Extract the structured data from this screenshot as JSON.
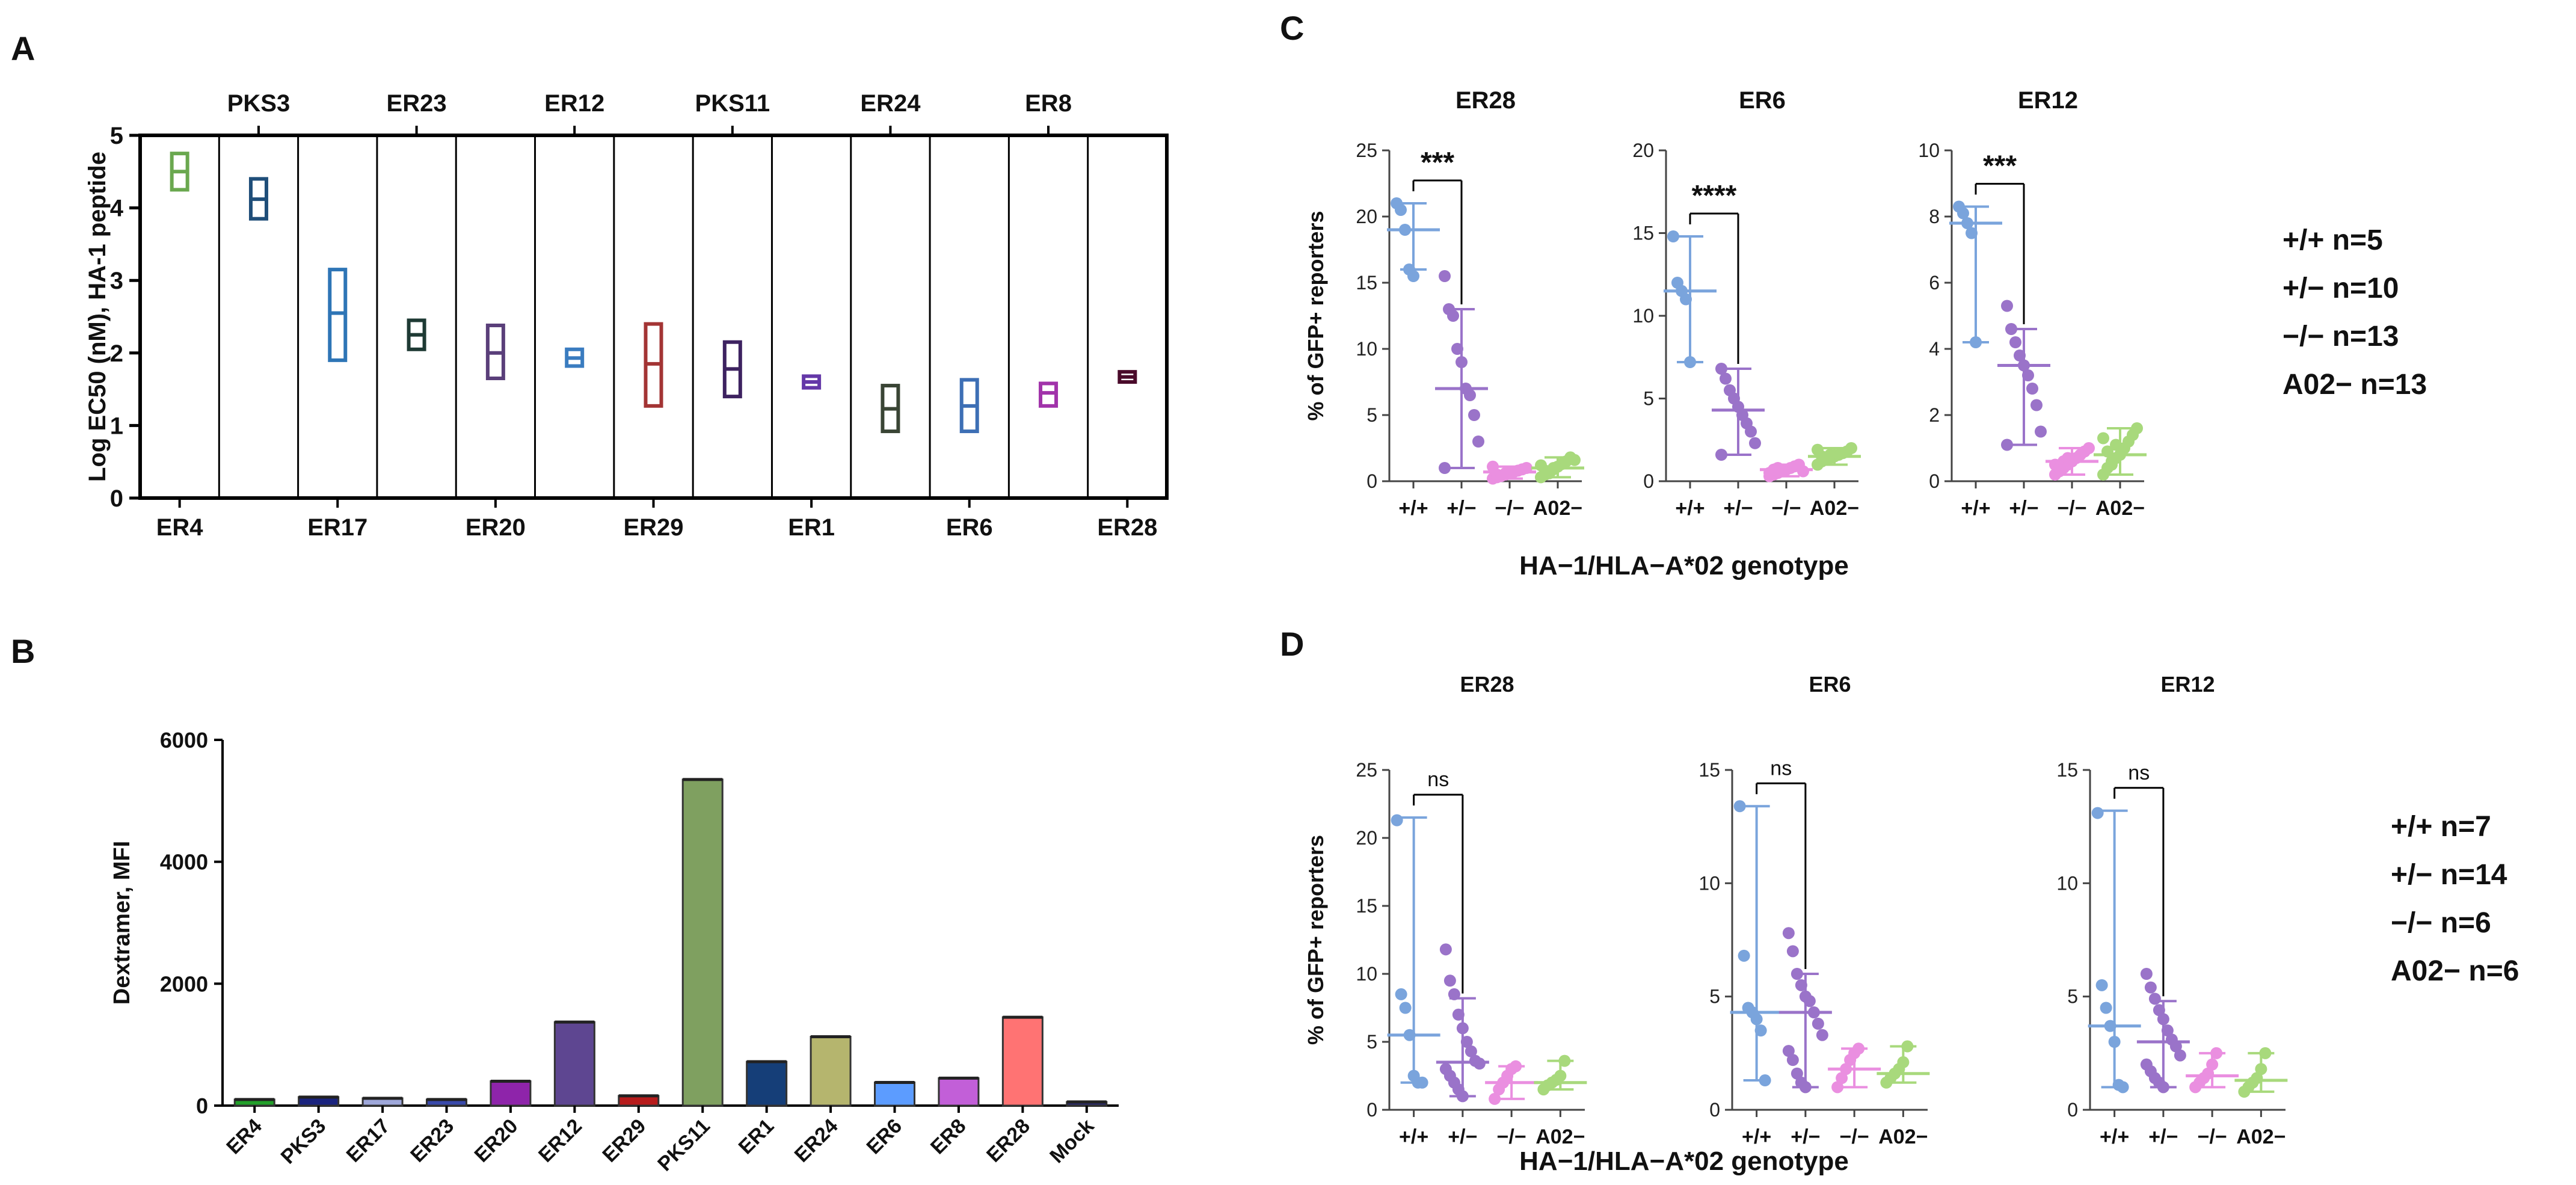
{
  "panel_labels": {
    "a": "A",
    "b": "B",
    "c": "C",
    "d": "D"
  },
  "chart_data": [
    {
      "id": "A",
      "type": "box",
      "ylabel": "Log EC50 (nM), HA-1 peptide",
      "ylim": [
        0,
        5
      ],
      "yticks": [
        0,
        1,
        2,
        3,
        4,
        5
      ],
      "categories": [
        "ER4",
        "PKS3",
        "ER17",
        "ER23",
        "ER20",
        "ER12",
        "ER29",
        "PKS11",
        "ER1",
        "ER24",
        "ER6",
        "ER8",
        "ER28"
      ],
      "label_rows": {
        "top": [
          "PKS3",
          "ER23",
          "ER12",
          "PKS11",
          "ER24",
          "ER8"
        ],
        "bottom": [
          "ER4",
          "ER17",
          "ER20",
          "ER29",
          "ER1",
          "ER6",
          "ER28"
        ]
      },
      "boxes": [
        {
          "name": "ER4",
          "low": 4.25,
          "mid": 4.5,
          "high": 4.75,
          "color": "#6aa84f"
        },
        {
          "name": "PKS3",
          "low": 3.85,
          "mid": 4.12,
          "high": 4.4,
          "color": "#1f4e79"
        },
        {
          "name": "ER17",
          "low": 1.9,
          "mid": 2.55,
          "high": 3.15,
          "color": "#2e75b6"
        },
        {
          "name": "ER23",
          "low": 2.05,
          "mid": 2.25,
          "high": 2.45,
          "color": "#1e3a34"
        },
        {
          "name": "ER20",
          "low": 1.65,
          "mid": 2.0,
          "high": 2.38,
          "color": "#5a3f7a"
        },
        {
          "name": "ER12",
          "low": 1.82,
          "mid": 1.93,
          "high": 2.05,
          "color": "#3a7cc0"
        },
        {
          "name": "ER29",
          "low": 1.27,
          "mid": 1.85,
          "high": 2.4,
          "color": "#a33434"
        },
        {
          "name": "PKS11",
          "low": 1.4,
          "mid": 1.78,
          "high": 2.15,
          "color": "#3d2260"
        },
        {
          "name": "ER1",
          "low": 1.52,
          "mid": 1.6,
          "high": 1.68,
          "color": "#6438a8"
        },
        {
          "name": "ER24",
          "low": 0.92,
          "mid": 1.23,
          "high": 1.55,
          "color": "#3a4535"
        },
        {
          "name": "ER6",
          "low": 0.92,
          "mid": 1.27,
          "high": 1.63,
          "color": "#3d6fb5"
        },
        {
          "name": "ER8",
          "low": 1.27,
          "mid": 1.45,
          "high": 1.58,
          "color": "#a133aa"
        },
        {
          "name": "ER28",
          "low": 1.6,
          "mid": 1.67,
          "high": 1.74,
          "color": "#4a0a2a"
        }
      ]
    },
    {
      "id": "B",
      "type": "bar",
      "ylabel": "Dextramer, MFI",
      "ylim": [
        0,
        6000
      ],
      "yticks": [
        0,
        2000,
        4000,
        6000
      ],
      "categories": [
        "ER4",
        "PKS3",
        "ER17",
        "ER23",
        "ER20",
        "ER12",
        "ER29",
        "PKS11",
        "ER1",
        "ER24",
        "ER6",
        "ER8",
        "ER28",
        "Mock"
      ],
      "values": [
        100,
        140,
        120,
        100,
        400,
        1370,
        160,
        5350,
        720,
        1130,
        380,
        450,
        1450,
        60
      ],
      "colors": [
        "#22a02a",
        "#1a237e",
        "#9fa8da",
        "#3949ab",
        "#8e24aa",
        "#5e4691",
        "#b71c1c",
        "#7fa060",
        "#153e78",
        "#b5b56e",
        "#5c9cff",
        "#c25fd8",
        "#ff7373",
        "#2b2b6b"
      ]
    },
    {
      "id": "C",
      "type": "scatter",
      "ylabel": "% of GFP+ reporters",
      "xlabel": "HA−1/HLA−A*02 genotype",
      "groups": [
        "+/+",
        "+/−",
        "−/−",
        "A02−"
      ],
      "group_colors": [
        "#7aa4dc",
        "#9a73c9",
        "#ea8fe0",
        "#a8d97c"
      ],
      "legend": [
        "+/+ n=5",
        "+/− n=10",
        "−/− n=13",
        "A02− n=13"
      ],
      "subplots": [
        {
          "title": "ER28",
          "ylim": [
            0,
            25
          ],
          "yticks": [
            0,
            5,
            10,
            15,
            20,
            25
          ],
          "significance": "***",
          "groups": [
            {
              "median": 19,
              "low": 16,
              "high": 21,
              "points": [
                21,
                20.5,
                19,
                16,
                15.5
              ]
            },
            {
              "median": 7,
              "low": 1,
              "high": 13,
              "points": [
                15.5,
                13,
                12.5,
                10,
                9,
                7,
                6.5,
                5,
                3,
                1
              ]
            },
            {
              "median": 0.7,
              "low": 0.2,
              "high": 1.1,
              "points": [
                0.2,
                0.3,
                0.4,
                0.5,
                0.6,
                0.7,
                0.8,
                0.9,
                1,
                1.1,
                0.5,
                0.4,
                0.6
              ]
            },
            {
              "median": 1,
              "low": 0.3,
              "high": 1.8,
              "points": [
                0.3,
                0.5,
                0.7,
                0.9,
                1.1,
                1.3,
                1.5,
                1.8,
                1.6,
                1.2,
                0.8,
                0.6,
                1
              ]
            }
          ]
        },
        {
          "title": "ER6",
          "ylim": [
            0,
            20
          ],
          "yticks": [
            0,
            5,
            10,
            15,
            20
          ],
          "significance": "****",
          "groups": [
            {
              "median": 11.5,
              "low": 7.2,
              "high": 14.8,
              "points": [
                14.8,
                12,
                11.5,
                11,
                7.2
              ]
            },
            {
              "median": 4.3,
              "low": 1.6,
              "high": 6.8,
              "points": [
                6.8,
                6.2,
                5.5,
                5,
                4.5,
                4,
                3.5,
                3,
                2.3,
                1.6
              ]
            },
            {
              "median": 0.7,
              "low": 0.3,
              "high": 1,
              "points": [
                0.3,
                0.4,
                0.5,
                0.6,
                0.7,
                0.8,
                0.9,
                1,
                0.6,
                0.5,
                0.7,
                0.8,
                0.6
              ]
            },
            {
              "median": 1.5,
              "low": 1,
              "high": 2,
              "points": [
                1,
                1.2,
                1.3,
                1.4,
                1.5,
                1.6,
                1.7,
                1.8,
                2,
                1.9,
                1.5,
                1.4,
                1.6
              ]
            }
          ]
        },
        {
          "title": "ER12",
          "ylim": [
            0,
            10
          ],
          "yticks": [
            0,
            2,
            4,
            6,
            8,
            10
          ],
          "significance": "***",
          "groups": [
            {
              "median": 7.8,
              "low": 4.2,
              "high": 8.3,
              "points": [
                8.3,
                8.1,
                7.8,
                7.5,
                4.2
              ]
            },
            {
              "median": 3.5,
              "low": 1.1,
              "high": 4.6,
              "points": [
                5.3,
                4.6,
                4.2,
                3.8,
                3.5,
                3.2,
                2.8,
                2.3,
                1.5,
                1.1
              ]
            },
            {
              "median": 0.6,
              "low": 0.2,
              "high": 1,
              "points": [
                0.2,
                0.3,
                0.4,
                0.5,
                0.6,
                0.7,
                0.8,
                0.9,
                1,
                0.5,
                0.4,
                0.6,
                0.7
              ]
            },
            {
              "median": 0.8,
              "low": 0.2,
              "high": 1.6,
              "points": [
                0.2,
                0.4,
                0.5,
                0.7,
                0.8,
                1,
                1.2,
                1.4,
                1.6,
                1.3,
                0.9,
                0.6,
                1.1
              ]
            }
          ]
        }
      ]
    },
    {
      "id": "D",
      "type": "scatter",
      "ylabel": "% of GFP+ reporters",
      "xlabel": "HA−1/HLA−A*02 genotype",
      "groups": [
        "+/+",
        "+/−",
        "−/−",
        "A02−"
      ],
      "group_colors": [
        "#7aa4dc",
        "#9a73c9",
        "#ea8fe0",
        "#a8d97c"
      ],
      "legend": [
        "+/+ n=7",
        "+/− n=14",
        "−/− n=6",
        "A02− n=6"
      ],
      "subplots": [
        {
          "title": "ER28",
          "ylim": [
            0,
            25
          ],
          "yticks": [
            0,
            5,
            10,
            15,
            20,
            25
          ],
          "significance": "ns",
          "groups": [
            {
              "median": 5.5,
              "low": 2,
              "high": 21.5,
              "points": [
                21.3,
                8.5,
                7.5,
                5.5,
                2.5,
                2,
                2
              ]
            },
            {
              "median": 3.5,
              "low": 1,
              "high": 8.2,
              "points": [
                11.8,
                9.5,
                8.5,
                7,
                6,
                5,
                4.3,
                3.6,
                3.4,
                3,
                2.5,
                2,
                1.5,
                1
              ]
            },
            {
              "median": 2,
              "low": 0.8,
              "high": 3.2,
              "points": [
                0.8,
                1.5,
                2,
                2.5,
                3,
                3.2
              ]
            },
            {
              "median": 2,
              "low": 1.5,
              "high": 3.6,
              "points": [
                1.5,
                1.8,
                2,
                2.2,
                2.5,
                3.6
              ]
            }
          ]
        },
        {
          "title": "ER6",
          "ylim": [
            0,
            15
          ],
          "yticks": [
            0,
            5,
            10,
            15
          ],
          "significance": "ns",
          "groups": [
            {
              "median": 4.3,
              "low": 1.3,
              "high": 13.4,
              "points": [
                13.4,
                6.8,
                4.5,
                4.3,
                4,
                3.5,
                1.3
              ]
            },
            {
              "median": 4.3,
              "low": 1,
              "high": 6,
              "points": [
                7.8,
                7,
                6,
                5.5,
                5,
                4.8,
                4.3,
                3.8,
                3.3,
                2.6,
                2.2,
                1.6,
                1.2,
                1
              ]
            },
            {
              "median": 1.8,
              "low": 1,
              "high": 2.7,
              "points": [
                1,
                1.4,
                1.8,
                2.2,
                2.5,
                2.7
              ]
            },
            {
              "median": 1.6,
              "low": 1.2,
              "high": 2.8,
              "points": [
                1.2,
                1.4,
                1.6,
                1.8,
                2.1,
                2.8
              ]
            }
          ]
        },
        {
          "title": "ER12",
          "ylim": [
            0,
            15
          ],
          "yticks": [
            0,
            5,
            10,
            15
          ],
          "significance": "ns",
          "groups": [
            {
              "median": 3.7,
              "low": 1,
              "high": 13.2,
              "points": [
                13.1,
                5.5,
                4.5,
                3.7,
                3,
                1.1,
                1
              ]
            },
            {
              "median": 3,
              "low": 1,
              "high": 4.8,
              "points": [
                6,
                5.4,
                4.9,
                4.4,
                4,
                3.5,
                3.1,
                2.8,
                2.4,
                2,
                1.7,
                1.4,
                1.2,
                1
              ]
            },
            {
              "median": 1.5,
              "low": 1,
              "high": 2.5,
              "points": [
                1,
                1.2,
                1.4,
                1.6,
                2,
                2.5
              ]
            },
            {
              "median": 1.3,
              "low": 0.8,
              "high": 2.5,
              "points": [
                0.8,
                1,
                1.2,
                1.4,
                1.8,
                2.5
              ]
            }
          ]
        }
      ]
    }
  ]
}
